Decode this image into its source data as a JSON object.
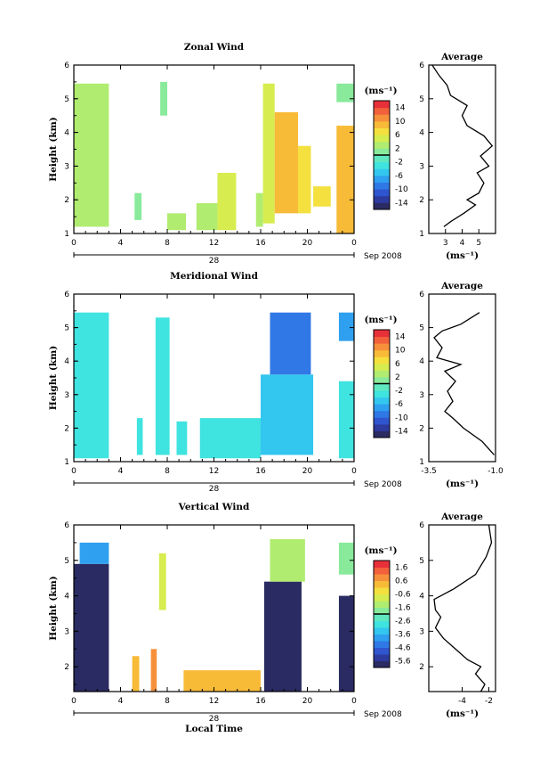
{
  "figure": {
    "date_label": "Sep 2008",
    "day_label": "28",
    "x_axis_title": "Local Time",
    "y_axis_title": "Height (km)",
    "unit_label": "(ms⁻¹)",
    "average_title": "Average",
    "colormap": [
      "#2b2b63",
      "#2d3a9e",
      "#2f55cf",
      "#2f78e6",
      "#2fa0ef",
      "#33c6ef",
      "#3fe3e0",
      "#5fe8c0",
      "#88ea9a",
      "#b0ec70",
      "#d7ec4e",
      "#f4e03e",
      "#f8bb38",
      "#f7903a",
      "#f2603c",
      "#e8303a"
    ]
  },
  "chart_data": [
    {
      "type": "heatmap",
      "title": "Zonal Wind",
      "xlabel": "",
      "ylabel": "Height (km)",
      "x_ticks": [
        "0",
        "4",
        "8",
        "12",
        "16",
        "20",
        "0"
      ],
      "y_ticks": [
        "1",
        "2",
        "3",
        "4",
        "5",
        "6"
      ],
      "xlim": [
        0,
        24
      ],
      "ylim": [
        1,
        6
      ],
      "colorbar": {
        "ticks": [
          "-14",
          "-10",
          "-6",
          "-2",
          "2",
          "6",
          "10",
          "14"
        ],
        "range": [
          -16,
          16
        ]
      },
      "blocks": [
        {
          "t0": 0.0,
          "t1": 3.0,
          "h0": 1.2,
          "h1": 5.45,
          "v": 3
        },
        {
          "t0": 5.2,
          "t1": 5.8,
          "h0": 1.4,
          "h1": 2.2,
          "v": 0
        },
        {
          "t0": 7.4,
          "t1": 8.0,
          "h0": 4.5,
          "h1": 5.5,
          "v": 1
        },
        {
          "t0": 8.0,
          "t1": 9.6,
          "h0": 1.1,
          "h1": 1.6,
          "v": 2
        },
        {
          "t0": 10.5,
          "t1": 12.3,
          "h0": 1.1,
          "h1": 1.9,
          "v": 3
        },
        {
          "t0": 12.3,
          "t1": 13.9,
          "h0": 1.1,
          "h1": 2.8,
          "v": 4
        },
        {
          "t0": 15.6,
          "t1": 16.2,
          "h0": 1.2,
          "h1": 2.2,
          "v": 3
        },
        {
          "t0": 16.2,
          "t1": 17.2,
          "h0": 1.3,
          "h1": 5.45,
          "v": 4
        },
        {
          "t0": 17.2,
          "t1": 19.2,
          "h0": 1.6,
          "h1": 4.6,
          "v": 8
        },
        {
          "t0": 19.2,
          "t1": 20.3,
          "h0": 1.6,
          "h1": 3.6,
          "v": 7
        },
        {
          "t0": 20.5,
          "t1": 22.0,
          "h0": 1.8,
          "h1": 2.4,
          "v": 6
        },
        {
          "t0": 22.5,
          "t1": 24.0,
          "h0": 1.0,
          "h1": 4.2,
          "v": 8
        },
        {
          "t0": 22.5,
          "t1": 24.0,
          "h0": 4.9,
          "h1": 5.45,
          "v": 0
        }
      ],
      "average": {
        "xlim": [
          2,
          6
        ],
        "ylim": [
          1,
          6
        ],
        "x_ticks": [
          "3",
          "4",
          "5"
        ],
        "x_tick_values": [
          3,
          4,
          5
        ],
        "y_ticks": [
          "1",
          "2",
          "3",
          "4",
          "5",
          "6"
        ],
        "profile": [
          [
            2.9,
            1.2
          ],
          [
            3.3,
            1.35
          ],
          [
            4.1,
            1.6
          ],
          [
            4.8,
            1.85
          ],
          [
            4.3,
            2.0
          ],
          [
            5.0,
            2.2
          ],
          [
            5.3,
            2.5
          ],
          [
            4.9,
            2.8
          ],
          [
            5.6,
            3.0
          ],
          [
            5.1,
            3.3
          ],
          [
            5.8,
            3.6
          ],
          [
            5.3,
            3.9
          ],
          [
            4.3,
            4.2
          ],
          [
            4.0,
            4.5
          ],
          [
            4.3,
            4.8
          ],
          [
            3.3,
            5.1
          ],
          [
            3.1,
            5.4
          ],
          [
            2.6,
            5.7
          ],
          [
            2.2,
            6.0
          ]
        ]
      }
    },
    {
      "type": "heatmap",
      "title": "Meridional Wind",
      "xlabel": "",
      "ylabel": "Height (km)",
      "x_ticks": [
        "0",
        "4",
        "8",
        "12",
        "16",
        "20",
        "0"
      ],
      "y_ticks": [
        "1",
        "2",
        "3",
        "4",
        "5",
        "6"
      ],
      "xlim": [
        0,
        24
      ],
      "ylim": [
        1,
        6
      ],
      "colorbar": {
        "ticks": [
          "-14",
          "-10",
          "-6",
          "-2",
          "2",
          "6",
          "10",
          "14"
        ],
        "range": [
          -16,
          16
        ]
      },
      "blocks": [
        {
          "t0": 0.0,
          "t1": 3.0,
          "h0": 1.1,
          "h1": 5.45,
          "v": -4
        },
        {
          "t0": 5.4,
          "t1": 5.9,
          "h0": 1.2,
          "h1": 2.3,
          "v": -4
        },
        {
          "t0": 7.0,
          "t1": 8.2,
          "h0": 1.2,
          "h1": 5.3,
          "v": -3
        },
        {
          "t0": 8.8,
          "t1": 9.7,
          "h0": 1.2,
          "h1": 2.2,
          "v": -4
        },
        {
          "t0": 10.8,
          "t1": 16.0,
          "h0": 1.1,
          "h1": 2.3,
          "v": -4
        },
        {
          "t0": 16.0,
          "t1": 20.5,
          "h0": 1.2,
          "h1": 3.6,
          "v": -6
        },
        {
          "t0": 16.8,
          "t1": 20.3,
          "h0": 3.6,
          "h1": 5.45,
          "v": -9
        },
        {
          "t0": 22.7,
          "t1": 24.0,
          "h0": 4.6,
          "h1": 5.45,
          "v": -7
        },
        {
          "t0": 22.7,
          "t1": 24.0,
          "h0": 1.1,
          "h1": 3.4,
          "v": -4
        }
      ],
      "average": {
        "xlim": [
          -3.5,
          -1.0
        ],
        "ylim": [
          1,
          6
        ],
        "x_ticks": [
          "-3.5",
          "-1.0"
        ],
        "x_tick_values": [
          -3.5,
          -1.0
        ],
        "y_ticks": [
          "1",
          "2",
          "3",
          "4",
          "5",
          "6"
        ],
        "profile": [
          [
            -1.05,
            1.2
          ],
          [
            -1.5,
            1.6
          ],
          [
            -2.2,
            2.0
          ],
          [
            -2.6,
            2.3
          ],
          [
            -2.9,
            2.5
          ],
          [
            -2.6,
            2.8
          ],
          [
            -2.8,
            3.1
          ],
          [
            -2.5,
            3.4
          ],
          [
            -2.9,
            3.7
          ],
          [
            -2.3,
            3.9
          ],
          [
            -3.2,
            4.1
          ],
          [
            -3.0,
            4.4
          ],
          [
            -3.3,
            4.7
          ],
          [
            -3.0,
            4.9
          ],
          [
            -2.3,
            5.1
          ],
          [
            -1.6,
            5.45
          ]
        ]
      }
    },
    {
      "type": "heatmap",
      "title": "Vertical Wind",
      "xlabel": "Local Time",
      "ylabel": "Height (km)",
      "x_ticks": [
        "0",
        "4",
        "8",
        "12",
        "16",
        "20",
        "0"
      ],
      "y_ticks": [
        "2",
        "3",
        "4",
        "5",
        "6"
      ],
      "xlim": [
        0,
        24
      ],
      "ylim": [
        1.3,
        6
      ],
      "colorbar": {
        "ticks": [
          "-5.6",
          "-4.6",
          "-3.6",
          "-2.6",
          "-1.6",
          "-0.6",
          "0.6",
          "1.6"
        ],
        "range": [
          -6.0,
          2.0
        ]
      },
      "blocks": [
        {
          "t0": 0.0,
          "t1": 3.0,
          "h0": 1.3,
          "h1": 4.9,
          "v": -6
        },
        {
          "t0": 0.5,
          "t1": 3.0,
          "h0": 4.9,
          "h1": 5.5,
          "v": -3.8
        },
        {
          "t0": 5.0,
          "t1": 5.6,
          "h0": 1.3,
          "h1": 2.3,
          "v": 0.4
        },
        {
          "t0": 6.6,
          "t1": 7.1,
          "h0": 1.3,
          "h1": 2.5,
          "v": 0.6
        },
        {
          "t0": 7.3,
          "t1": 7.9,
          "h0": 3.6,
          "h1": 5.2,
          "v": -1.0
        },
        {
          "t0": 9.4,
          "t1": 16.0,
          "h0": 1.3,
          "h1": 1.9,
          "v": 0.2
        },
        {
          "t0": 16.3,
          "t1": 19.5,
          "h0": 1.3,
          "h1": 4.4,
          "v": -6
        },
        {
          "t0": 16.8,
          "t1": 19.8,
          "h0": 4.4,
          "h1": 5.6,
          "v": -1.4
        },
        {
          "t0": 22.7,
          "t1": 24.0,
          "h0": 1.3,
          "h1": 4.0,
          "v": -6
        },
        {
          "t0": 22.7,
          "t1": 24.0,
          "h0": 4.6,
          "h1": 5.5,
          "v": -1.6
        }
      ],
      "average": {
        "xlim": [
          -6.5,
          -1.5
        ],
        "ylim": [
          1.3,
          6
        ],
        "x_ticks": [
          "-4",
          "-2"
        ],
        "x_tick_values": [
          -4,
          -2
        ],
        "y_ticks": [
          "2",
          "3",
          "4",
          "5",
          "6"
        ],
        "profile": [
          [
            -2.6,
            1.3
          ],
          [
            -2.3,
            1.5
          ],
          [
            -3.0,
            1.8
          ],
          [
            -2.6,
            2.0
          ],
          [
            -3.6,
            2.2
          ],
          [
            -4.5,
            2.5
          ],
          [
            -5.4,
            2.8
          ],
          [
            -6.0,
            3.1
          ],
          [
            -5.6,
            3.4
          ],
          [
            -6.0,
            3.6
          ],
          [
            -6.1,
            3.9
          ],
          [
            -4.6,
            4.2
          ],
          [
            -3.0,
            4.6
          ],
          [
            -2.2,
            5.1
          ],
          [
            -1.8,
            5.5
          ],
          [
            -2.0,
            6.0
          ]
        ]
      }
    }
  ]
}
